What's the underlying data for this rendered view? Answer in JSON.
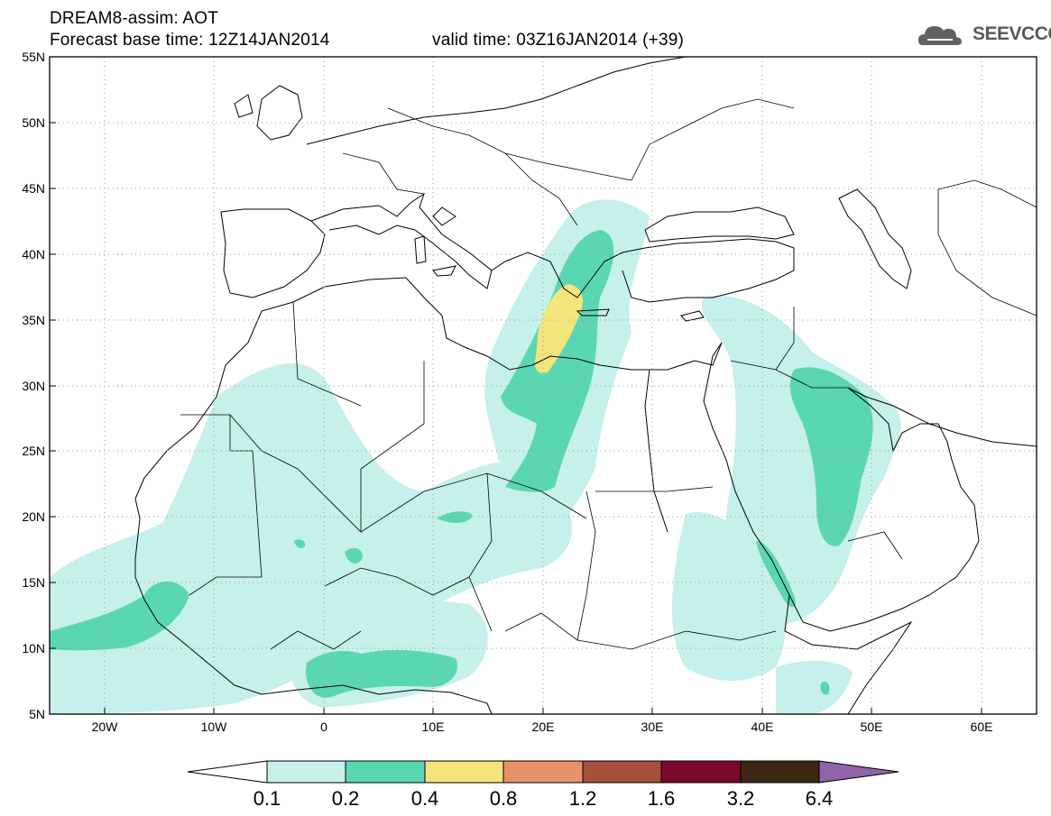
{
  "header": {
    "title_line1": "DREAM8-assim: AOT",
    "forecast_base": "Forecast base time: 12Z14JAN2014",
    "valid_time": "valid time: 03Z16JAN2014 (+39)"
  },
  "logo": {
    "text": "SEEVCCC",
    "icon": "cloud-icon"
  },
  "map": {
    "lon_range": [
      -25,
      65
    ],
    "lat_range": [
      5,
      55
    ],
    "lat_labels": [
      "55N",
      "50N",
      "45N",
      "40N",
      "35N",
      "30N",
      "25N",
      "20N",
      "15N",
      "10N",
      "5N"
    ],
    "lon_labels": [
      "20W",
      "10W",
      "0",
      "10E",
      "20E",
      "30E",
      "40E",
      "50E",
      "60E"
    ],
    "grid": "dotted"
  },
  "colorbar": {
    "ticks": [
      "0.1",
      "0.2",
      "0.4",
      "0.8",
      "1.2",
      "1.6",
      "3.2",
      "6.4"
    ],
    "colors": [
      "#ffffff",
      "#c6f0ea",
      "#5ad7b2",
      "#f4e47c",
      "#e8926a",
      "#a84e3c",
      "#7a0a2c",
      "#3c2614",
      "#8f64aa"
    ]
  }
}
